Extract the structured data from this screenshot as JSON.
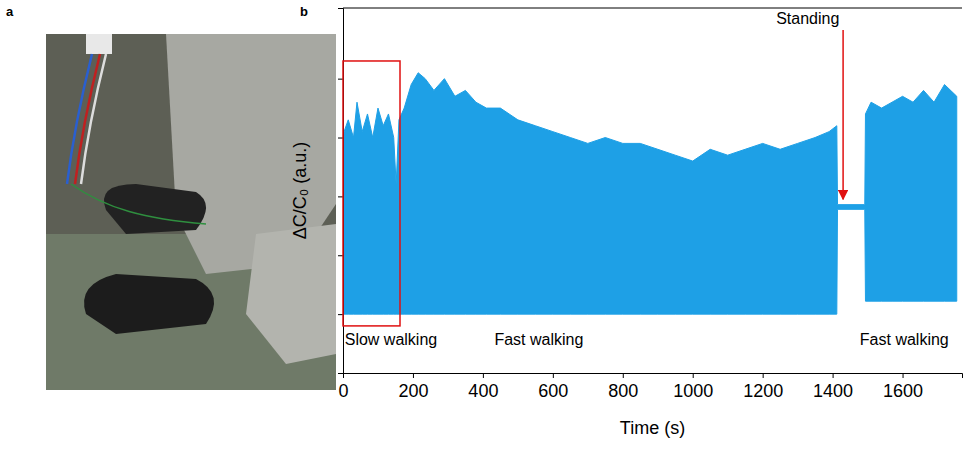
{
  "chart_data": {
    "type": "area",
    "panel_labels": [
      "a",
      "b"
    ],
    "xlabel": "Time (s)",
    "ylabel": "ΔC/C₀ (a.u.)",
    "color": "#1ea0e6",
    "x": [
      0,
      3,
      15,
      30,
      40,
      55,
      70,
      85,
      100,
      115,
      130,
      145,
      152,
      160,
      175,
      195,
      215,
      235,
      260,
      290,
      320,
      350,
      380,
      410,
      450,
      500,
      550,
      600,
      650,
      700,
      750,
      800,
      850,
      900,
      950,
      1000,
      1050,
      1100,
      1150,
      1200,
      1250,
      1300,
      1350,
      1390,
      1412,
      1414,
      1492,
      1494,
      1510,
      1540,
      1570,
      1600,
      1630,
      1660,
      1690,
      1720,
      1755
    ],
    "upper": [
      2.9,
      4.1,
      4.3,
      4.0,
      4.6,
      4.1,
      4.4,
      4.0,
      4.5,
      4.2,
      4.4,
      4.0,
      3.2,
      4.3,
      4.5,
      4.9,
      5.1,
      5.0,
      4.8,
      5.0,
      4.7,
      4.8,
      4.6,
      4.5,
      4.5,
      4.3,
      4.2,
      4.1,
      4.0,
      3.9,
      4.0,
      3.9,
      3.9,
      3.8,
      3.7,
      3.6,
      3.8,
      3.7,
      3.8,
      3.9,
      3.8,
      3.9,
      4.0,
      4.1,
      4.2,
      2.86,
      2.86,
      4.4,
      4.6,
      4.5,
      4.6,
      4.7,
      4.6,
      4.8,
      4.6,
      4.9,
      4.7
    ],
    "lower": [
      1.0,
      1.0,
      1.0,
      1.0,
      1.0,
      1.0,
      1.0,
      1.0,
      1.0,
      1.0,
      1.0,
      1.0,
      1.0,
      1.0,
      1.0,
      1.0,
      1.0,
      1.0,
      1.0,
      1.0,
      1.0,
      1.0,
      1.0,
      1.0,
      1.0,
      1.0,
      1.0,
      1.0,
      1.0,
      1.0,
      1.0,
      1.0,
      1.0,
      1.0,
      1.0,
      1.0,
      1.0,
      1.0,
      1.0,
      1.0,
      1.0,
      1.0,
      1.0,
      1.0,
      1.0,
      2.78,
      2.78,
      1.22,
      1.22,
      1.22,
      1.22,
      1.22,
      1.22,
      1.22,
      1.22,
      1.22,
      1.22
    ],
    "xlim": [
      0,
      1770
    ],
    "xticks": [
      0,
      200,
      400,
      600,
      800,
      1000,
      1200,
      1400,
      1600
    ],
    "ylim": [
      0,
      6.2
    ],
    "yticks": [
      0,
      1,
      2,
      3,
      4,
      5
    ],
    "tick_labels": "x",
    "grid": false,
    "annotations": [
      {
        "text": "Slow walking",
        "x": 5,
        "y": 0.55
      },
      {
        "text": "Fast walking",
        "x": 560,
        "y": 0.55
      },
      {
        "text": "Fast walking",
        "x": 1605,
        "y": 0.55
      },
      {
        "text": "Standing",
        "x": 1329,
        "y": 6.0,
        "arrow_to": [
          1430,
          2.95
        ]
      }
    ],
    "box": {
      "x": [
        0,
        163
      ],
      "y": [
        0.8,
        5.3
      ],
      "color": "#e01010"
    }
  }
}
